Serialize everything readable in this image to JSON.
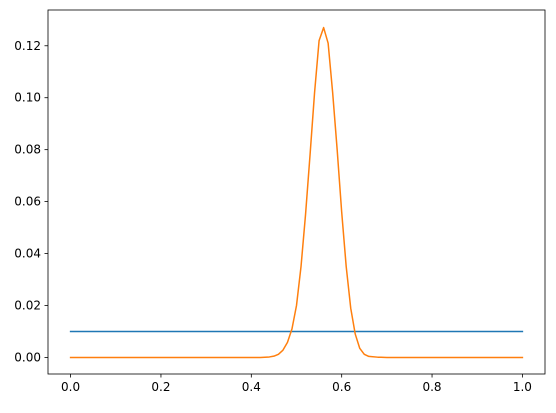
{
  "chart_data": {
    "type": "line",
    "title": "",
    "xlabel": "",
    "ylabel": "",
    "xlim": [
      -0.05,
      1.05
    ],
    "ylim": [
      -0.00637,
      0.13377
    ],
    "grid": false,
    "legend": "none",
    "x_ticks": [
      {
        "value": 0.0,
        "label": "0.0"
      },
      {
        "value": 0.2,
        "label": "0.2"
      },
      {
        "value": 0.4,
        "label": "0.4"
      },
      {
        "value": 0.6,
        "label": "0.6"
      },
      {
        "value": 0.8,
        "label": "0.8"
      },
      {
        "value": 1.0,
        "label": "1.0"
      }
    ],
    "y_ticks": [
      {
        "value": 0.0,
        "label": "0.00"
      },
      {
        "value": 0.02,
        "label": "0.02"
      },
      {
        "value": 0.04,
        "label": "0.04"
      },
      {
        "value": 0.06,
        "label": "0.06"
      },
      {
        "value": 0.08,
        "label": "0.08"
      },
      {
        "value": 0.1,
        "label": "0.10"
      },
      {
        "value": 0.12,
        "label": "0.12"
      }
    ],
    "series": [
      {
        "color": "#1f77b4",
        "x": [
          0.0,
          1.0
        ],
        "y": [
          0.01,
          0.01
        ]
      },
      {
        "color": "#ff7f0e",
        "x": [
          0.0,
          0.42,
          0.44,
          0.45,
          0.46,
          0.47,
          0.48,
          0.49,
          0.5,
          0.51,
          0.52,
          0.53,
          0.54,
          0.55,
          0.56,
          0.57,
          0.58,
          0.59,
          0.6,
          0.61,
          0.62,
          0.63,
          0.64,
          0.65,
          0.66,
          0.68,
          0.7,
          1.0
        ],
        "y": [
          0.0,
          0.0,
          0.0002,
          0.0005,
          0.0012,
          0.0028,
          0.0058,
          0.011,
          0.02,
          0.035,
          0.055,
          0.078,
          0.102,
          0.122,
          0.127,
          0.121,
          0.102,
          0.08,
          0.056,
          0.035,
          0.019,
          0.009,
          0.0035,
          0.0012,
          0.0004,
          0.0001,
          0.0,
          0.0
        ]
      }
    ]
  }
}
